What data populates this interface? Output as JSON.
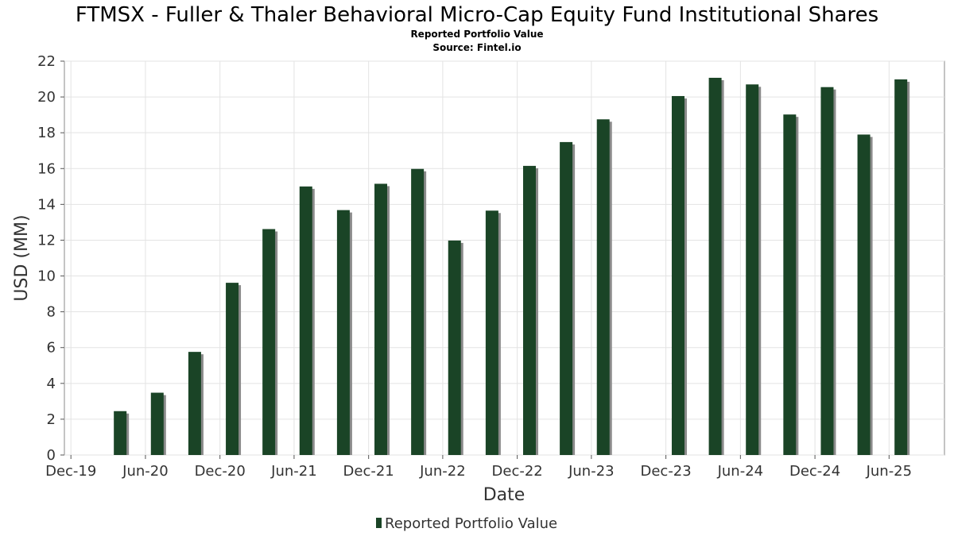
{
  "chart_data": {
    "type": "bar",
    "title": "FTMSX - Fuller & Thaler Behavioral Micro-Cap Equity Fund Institutional Shares",
    "subtitle": "Reported Portfolio Value",
    "source": "Source: Fintel.io",
    "xlabel": "Date",
    "ylabel": "USD (MM)",
    "ylim": [
      0,
      22
    ],
    "yticks": [
      0,
      2,
      4,
      6,
      8,
      10,
      12,
      14,
      16,
      18,
      20,
      22
    ],
    "xlim": [
      "2019-11-15",
      "2025-10-15"
    ],
    "xticks": [
      {
        "label": "Dec-19",
        "date": "2019-12-01"
      },
      {
        "label": "Jun-20",
        "date": "2020-06-01"
      },
      {
        "label": "Dec-20",
        "date": "2020-12-01"
      },
      {
        "label": "Jun-21",
        "date": "2021-06-01"
      },
      {
        "label": "Dec-21",
        "date": "2021-12-01"
      },
      {
        "label": "Jun-22",
        "date": "2022-06-01"
      },
      {
        "label": "Dec-22",
        "date": "2022-12-01"
      },
      {
        "label": "Jun-23",
        "date": "2023-06-01"
      },
      {
        "label": "Dec-23",
        "date": "2023-12-01"
      },
      {
        "label": "Jun-24",
        "date": "2024-06-01"
      },
      {
        "label": "Dec-24",
        "date": "2024-12-01"
      },
      {
        "label": "Jun-25",
        "date": "2025-06-01"
      }
    ],
    "grid": true,
    "legend_position": "bottom-center",
    "bar_color": "#1a4426",
    "shadow_color": "#8a8a8a",
    "series": [
      {
        "name": "Reported Portfolio Value",
        "points": [
          {
            "date": "2020-03-31",
            "value": 2.45
          },
          {
            "date": "2020-06-30",
            "value": 3.48
          },
          {
            "date": "2020-09-30",
            "value": 5.76
          },
          {
            "date": "2020-12-31",
            "value": 9.62
          },
          {
            "date": "2021-03-31",
            "value": 12.62
          },
          {
            "date": "2021-06-30",
            "value": 15.0
          },
          {
            "date": "2021-09-30",
            "value": 13.68
          },
          {
            "date": "2021-12-31",
            "value": 15.15
          },
          {
            "date": "2022-03-31",
            "value": 15.98
          },
          {
            "date": "2022-06-30",
            "value": 11.98
          },
          {
            "date": "2022-09-30",
            "value": 13.65
          },
          {
            "date": "2022-12-31",
            "value": 16.15
          },
          {
            "date": "2023-03-31",
            "value": 17.48
          },
          {
            "date": "2023-06-30",
            "value": 18.75
          },
          {
            "date": "2023-12-31",
            "value": 20.05
          },
          {
            "date": "2024-03-31",
            "value": 21.07
          },
          {
            "date": "2024-06-30",
            "value": 20.7
          },
          {
            "date": "2024-09-30",
            "value": 19.02
          },
          {
            "date": "2024-12-31",
            "value": 20.55
          },
          {
            "date": "2025-03-31",
            "value": 17.9
          },
          {
            "date": "2025-06-30",
            "value": 20.98
          }
        ]
      }
    ]
  }
}
